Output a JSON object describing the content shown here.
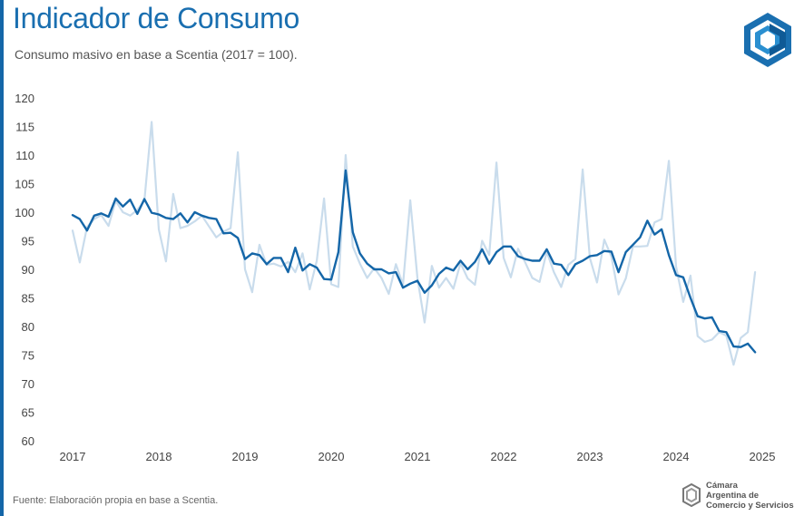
{
  "header": {
    "title": "Indicador de Consumo",
    "subtitle": "Consumo masivo en base a Scentia (2017 = 100)."
  },
  "footer": {
    "source": "Fuente: Elaboración propia en base a Scentia."
  },
  "org": {
    "name_line1": "Cámara",
    "name_line2": "Argentina de",
    "name_line3": "Comercio y Servicios"
  },
  "colors": {
    "brand": "#1466a8",
    "series_raw": "#c9dcec",
    "series_trend": "#1466a8"
  },
  "chart_data": {
    "type": "line",
    "x_labels": [
      "2017",
      "2018",
      "2019",
      "2020",
      "2021",
      "2022",
      "2023",
      "2024",
      "2025"
    ],
    "y_ticks": [
      60,
      65,
      70,
      75,
      80,
      85,
      90,
      95,
      100,
      105,
      110,
      115,
      120
    ],
    "ylim": [
      60,
      120
    ],
    "xlim": [
      2017.0,
      2025.0
    ],
    "grid": false,
    "series": [
      {
        "values": [
          [
            2017.0,
            96.8
          ],
          [
            2017.083,
            91.2
          ],
          [
            2017.167,
            97.4
          ],
          [
            2017.25,
            98.8
          ],
          [
            2017.333,
            99.5
          ],
          [
            2017.417,
            97.6
          ],
          [
            2017.5,
            102.0
          ],
          [
            2017.583,
            100.0
          ],
          [
            2017.667,
            99.4
          ],
          [
            2017.75,
            100.4
          ],
          [
            2017.833,
            102.0
          ],
          [
            2017.917,
            115.8
          ],
          [
            2018.0,
            97.0
          ],
          [
            2018.083,
            91.4
          ],
          [
            2018.167,
            103.2
          ],
          [
            2018.25,
            97.2
          ],
          [
            2018.333,
            97.6
          ],
          [
            2018.417,
            98.4
          ],
          [
            2018.5,
            99.4
          ],
          [
            2018.583,
            97.5
          ],
          [
            2018.667,
            95.6
          ],
          [
            2018.75,
            96.6
          ],
          [
            2018.833,
            97.2
          ],
          [
            2018.917,
            110.5
          ],
          [
            2019.0,
            90.0
          ],
          [
            2019.083,
            86.0
          ],
          [
            2019.167,
            94.3
          ],
          [
            2019.25,
            90.8
          ],
          [
            2019.333,
            91.0
          ],
          [
            2019.417,
            90.5
          ],
          [
            2019.5,
            91.3
          ],
          [
            2019.583,
            89.5
          ],
          [
            2019.667,
            92.8
          ],
          [
            2019.75,
            86.5
          ],
          [
            2019.833,
            91.5
          ],
          [
            2019.917,
            102.4
          ],
          [
            2020.0,
            87.4
          ],
          [
            2020.083,
            86.9
          ],
          [
            2020.167,
            110.0
          ],
          [
            2020.25,
            94.0
          ],
          [
            2020.333,
            91.0
          ],
          [
            2020.417,
            88.5
          ],
          [
            2020.5,
            90.2
          ],
          [
            2020.583,
            88.5
          ],
          [
            2020.667,
            85.7
          ],
          [
            2020.75,
            90.9
          ],
          [
            2020.833,
            87.3
          ],
          [
            2020.917,
            102.1
          ],
          [
            2021.0,
            88.5
          ],
          [
            2021.083,
            80.7
          ],
          [
            2021.167,
            90.6
          ],
          [
            2021.25,
            86.8
          ],
          [
            2021.333,
            88.5
          ],
          [
            2021.417,
            86.6
          ],
          [
            2021.5,
            91.1
          ],
          [
            2021.583,
            88.4
          ],
          [
            2021.667,
            87.3
          ],
          [
            2021.75,
            95.0
          ],
          [
            2021.833,
            92.5
          ],
          [
            2021.917,
            108.7
          ],
          [
            2022.0,
            92.0
          ],
          [
            2022.083,
            88.6
          ],
          [
            2022.167,
            93.6
          ],
          [
            2022.25,
            91.2
          ],
          [
            2022.333,
            88.5
          ],
          [
            2022.417,
            87.8
          ],
          [
            2022.5,
            93.1
          ],
          [
            2022.583,
            89.5
          ],
          [
            2022.667,
            86.9
          ],
          [
            2022.75,
            90.8
          ],
          [
            2022.833,
            91.8
          ],
          [
            2022.917,
            107.5
          ],
          [
            2023.0,
            92.0
          ],
          [
            2023.083,
            87.7
          ],
          [
            2023.167,
            95.2
          ],
          [
            2023.25,
            92.2
          ],
          [
            2023.333,
            85.6
          ],
          [
            2023.417,
            88.4
          ],
          [
            2023.5,
            94.0
          ],
          [
            2023.583,
            94.0
          ],
          [
            2023.667,
            94.1
          ],
          [
            2023.75,
            98.2
          ],
          [
            2023.833,
            98.8
          ],
          [
            2023.917,
            109.0
          ],
          [
            2024.0,
            90.5
          ],
          [
            2024.083,
            84.3
          ],
          [
            2024.167,
            88.9
          ],
          [
            2024.25,
            78.3
          ],
          [
            2024.333,
            77.3
          ],
          [
            2024.417,
            77.7
          ],
          [
            2024.5,
            79.0
          ],
          [
            2024.583,
            78.4
          ],
          [
            2024.667,
            73.3
          ],
          [
            2024.75,
            78.0
          ],
          [
            2024.833,
            79.0
          ],
          [
            2024.917,
            89.5
          ]
        ]
      },
      {
        "values": [
          [
            2017.0,
            99.5
          ],
          [
            2017.083,
            98.8
          ],
          [
            2017.167,
            96.8
          ],
          [
            2017.25,
            99.4
          ],
          [
            2017.333,
            99.8
          ],
          [
            2017.417,
            99.2
          ],
          [
            2017.5,
            102.4
          ],
          [
            2017.583,
            101.0
          ],
          [
            2017.667,
            102.2
          ],
          [
            2017.75,
            99.7
          ],
          [
            2017.833,
            102.3
          ],
          [
            2017.917,
            99.9
          ],
          [
            2018.0,
            99.6
          ],
          [
            2018.083,
            99.0
          ],
          [
            2018.167,
            98.8
          ],
          [
            2018.25,
            99.8
          ],
          [
            2018.333,
            98.2
          ],
          [
            2018.417,
            100.0
          ],
          [
            2018.5,
            99.4
          ],
          [
            2018.583,
            99.0
          ],
          [
            2018.667,
            98.8
          ],
          [
            2018.75,
            96.3
          ],
          [
            2018.833,
            96.4
          ],
          [
            2018.917,
            95.5
          ],
          [
            2019.0,
            91.8
          ],
          [
            2019.083,
            92.8
          ],
          [
            2019.167,
            92.5
          ],
          [
            2019.25,
            90.9
          ],
          [
            2019.333,
            92.0
          ],
          [
            2019.417,
            92.0
          ],
          [
            2019.5,
            89.5
          ],
          [
            2019.583,
            93.8
          ],
          [
            2019.667,
            89.8
          ],
          [
            2019.75,
            90.9
          ],
          [
            2019.833,
            90.3
          ],
          [
            2019.917,
            88.3
          ],
          [
            2020.0,
            88.2
          ],
          [
            2020.083,
            93.0
          ],
          [
            2020.167,
            107.3
          ],
          [
            2020.25,
            96.5
          ],
          [
            2020.333,
            92.8
          ],
          [
            2020.417,
            91.0
          ],
          [
            2020.5,
            90.0
          ],
          [
            2020.583,
            90.0
          ],
          [
            2020.667,
            89.3
          ],
          [
            2020.75,
            89.5
          ],
          [
            2020.833,
            86.8
          ],
          [
            2020.917,
            87.5
          ],
          [
            2021.0,
            88.0
          ],
          [
            2021.083,
            85.9
          ],
          [
            2021.167,
            87.2
          ],
          [
            2021.25,
            89.2
          ],
          [
            2021.333,
            90.3
          ],
          [
            2021.417,
            89.8
          ],
          [
            2021.5,
            91.5
          ],
          [
            2021.583,
            90.0
          ],
          [
            2021.667,
            91.3
          ],
          [
            2021.75,
            93.5
          ],
          [
            2021.833,
            91.0
          ],
          [
            2021.917,
            93.0
          ],
          [
            2022.0,
            94.0
          ],
          [
            2022.083,
            94.0
          ],
          [
            2022.167,
            92.3
          ],
          [
            2022.25,
            91.8
          ],
          [
            2022.333,
            91.5
          ],
          [
            2022.417,
            91.5
          ],
          [
            2022.5,
            93.5
          ],
          [
            2022.583,
            91.0
          ],
          [
            2022.667,
            90.8
          ],
          [
            2022.75,
            89.0
          ],
          [
            2022.833,
            90.9
          ],
          [
            2022.917,
            91.5
          ],
          [
            2023.0,
            92.3
          ],
          [
            2023.083,
            92.5
          ],
          [
            2023.167,
            93.2
          ],
          [
            2023.25,
            93.1
          ],
          [
            2023.333,
            89.5
          ],
          [
            2023.417,
            93.0
          ],
          [
            2023.5,
            94.3
          ],
          [
            2023.583,
            95.6
          ],
          [
            2023.667,
            98.5
          ],
          [
            2023.75,
            96.1
          ],
          [
            2023.833,
            97.0
          ],
          [
            2023.917,
            92.5
          ],
          [
            2024.0,
            89.0
          ],
          [
            2024.083,
            88.6
          ],
          [
            2024.167,
            85.0
          ],
          [
            2024.25,
            81.8
          ],
          [
            2024.333,
            81.4
          ],
          [
            2024.417,
            81.6
          ],
          [
            2024.5,
            79.2
          ],
          [
            2024.583,
            79.0
          ],
          [
            2024.667,
            76.5
          ],
          [
            2024.75,
            76.4
          ],
          [
            2024.833,
            77.0
          ],
          [
            2024.917,
            75.5
          ]
        ]
      }
    ]
  }
}
